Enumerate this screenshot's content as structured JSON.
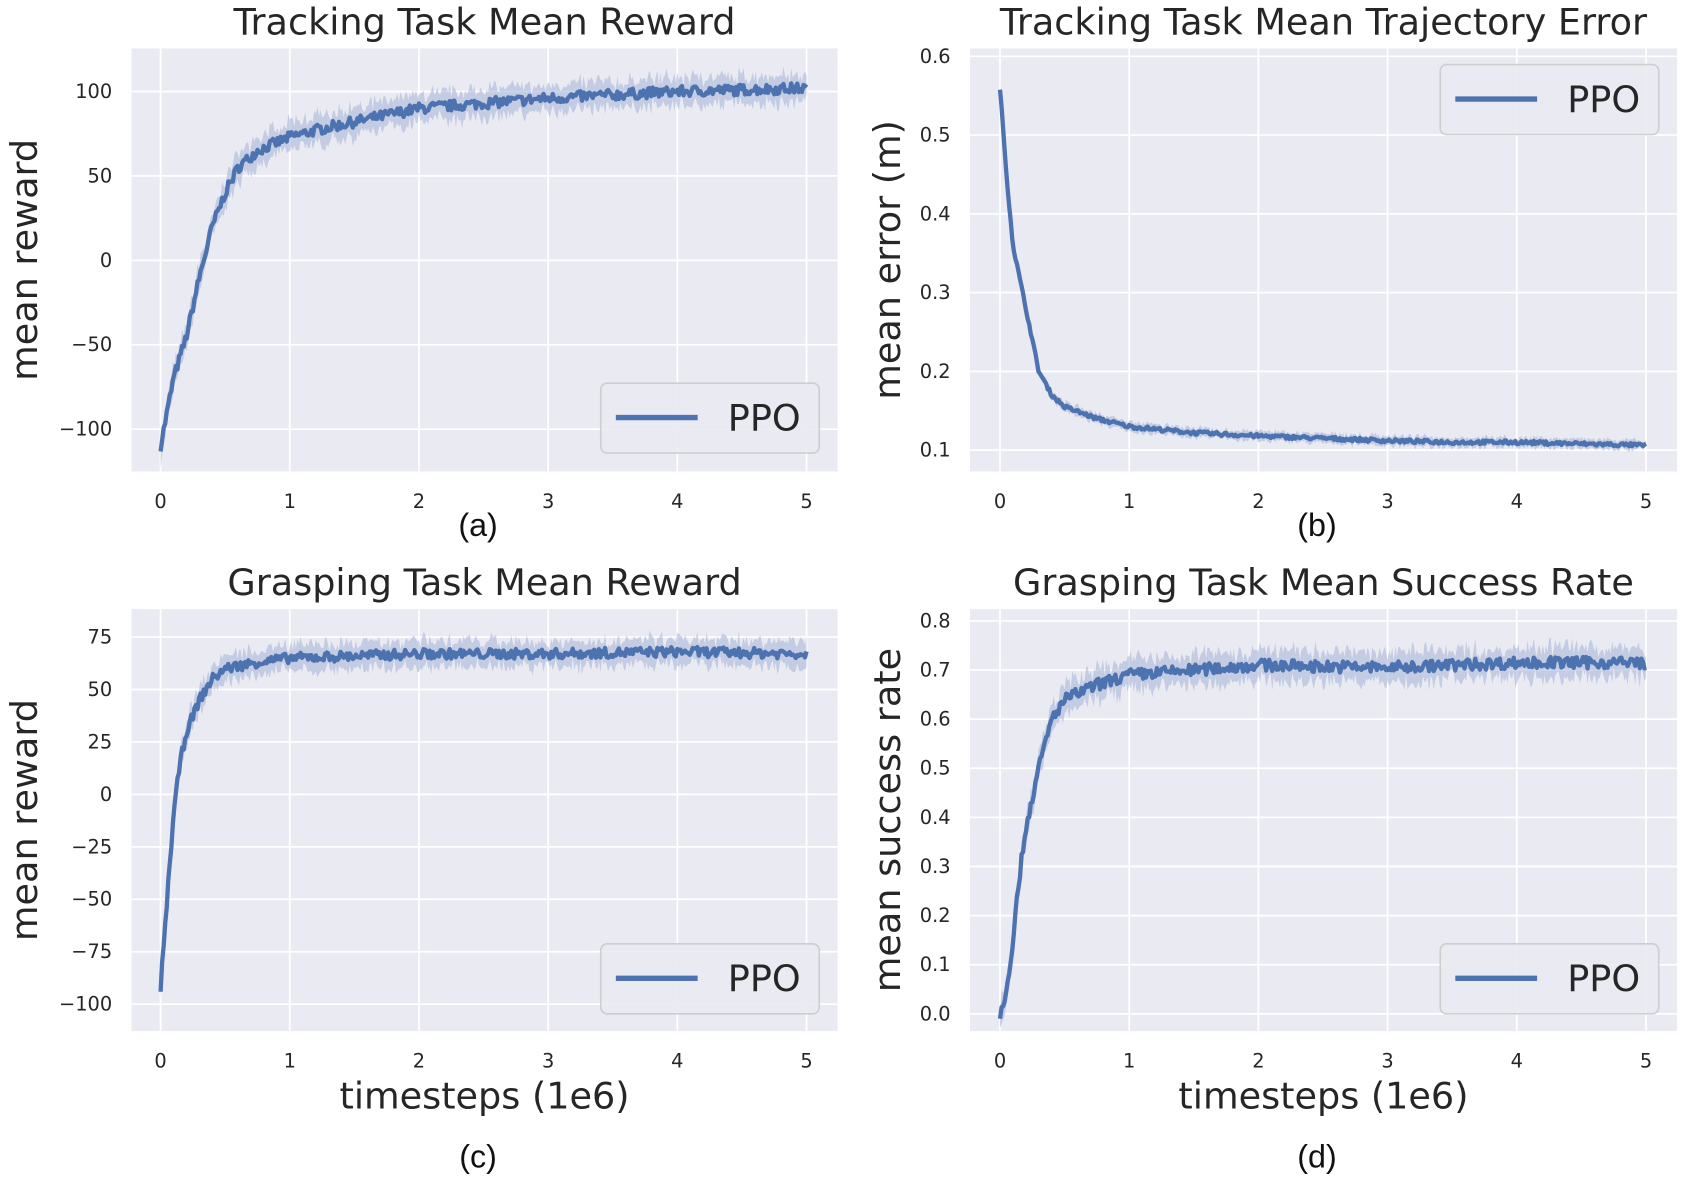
{
  "colors": {
    "line": "#4c72b0",
    "band": "#a9b8d8",
    "axes_bg": "#eaeaf2",
    "grid": "#ffffff"
  },
  "chart_data": [
    {
      "type": "line",
      "panel_label": "(a)",
      "title": "Tracking Task Mean Reward",
      "xlabel": "",
      "ylabel": "mean reward",
      "xlim": [
        -0.225,
        5.24
      ],
      "ylim": [
        -125,
        125.5
      ],
      "xticks": [
        0,
        1,
        2,
        3,
        4,
        5
      ],
      "yticks": [
        -100,
        -50,
        0,
        50,
        100
      ],
      "ytick_labels": [
        "−100",
        "−50",
        "0",
        "50",
        "100"
      ],
      "legend": {
        "entries": [
          "PPO"
        ],
        "placement": "bottom-right"
      },
      "grid": true,
      "series": [
        {
          "name": "PPO",
          "x": [
            0,
            0.1,
            0.2,
            0.3,
            0.4,
            0.5,
            0.6,
            0.75,
            1,
            1.25,
            1.5,
            1.75,
            2,
            2.5,
            3,
            3.5,
            4,
            4.5,
            5
          ],
          "y": [
            -110,
            -70,
            -45,
            -10,
            20,
            40,
            55,
            65,
            73,
            78,
            82,
            86,
            90,
            93,
            96,
            98,
            100,
            101,
            102
          ],
          "band": 8
        }
      ]
    },
    {
      "type": "line",
      "panel_label": "(b)",
      "title": "Tracking Task Mean Trajectory Error",
      "xlabel": "",
      "ylabel": "mean error (m)",
      "xlim": [
        -0.233,
        5.24
      ],
      "ylim": [
        0.073,
        0.61
      ],
      "xticks": [
        0,
        1,
        2,
        3,
        4,
        5
      ],
      "yticks": [
        0.1,
        0.2,
        0.3,
        0.4,
        0.5,
        0.6
      ],
      "ytick_labels": [
        "0.1",
        "0.2",
        "0.3",
        "0.4",
        "0.5",
        "0.6"
      ],
      "legend": {
        "entries": [
          "PPO"
        ],
        "placement": "top-right"
      },
      "grid": true,
      "series": [
        {
          "name": "PPO",
          "x": [
            0,
            0.05,
            0.1,
            0.2,
            0.3,
            0.4,
            0.5,
            0.75,
            1,
            1.5,
            2,
            2.5,
            3,
            3.5,
            4,
            4.5,
            5
          ],
          "y": [
            0.56,
            0.45,
            0.36,
            0.28,
            0.2,
            0.17,
            0.155,
            0.14,
            0.13,
            0.122,
            0.118,
            0.115,
            0.112,
            0.11,
            0.11,
            0.108,
            0.106
          ],
          "band": 0.006
        }
      ]
    },
    {
      "type": "line",
      "panel_label": "(c)",
      "title": "Grasping Task Mean Reward",
      "xlabel": "timesteps (1e6)",
      "ylabel": "mean reward",
      "xlim": [
        -0.225,
        5.24
      ],
      "ylim": [
        -112.8,
        88.3
      ],
      "xticks": [
        0,
        1,
        2,
        3,
        4,
        5
      ],
      "yticks": [
        -100,
        -75,
        -50,
        -25,
        0,
        25,
        50,
        75
      ],
      "ytick_labels": [
        "−100",
        "−75",
        "−50",
        "−25",
        "0",
        "25",
        "50",
        "75"
      ],
      "legend": {
        "entries": [
          "PPO"
        ],
        "placement": "bottom-right"
      },
      "grid": true,
      "series": [
        {
          "name": "PPO",
          "x": [
            0,
            0.05,
            0.1,
            0.15,
            0.2,
            0.3,
            0.4,
            0.5,
            0.75,
            1,
            1.5,
            2,
            3,
            4,
            5
          ],
          "y": [
            -92,
            -50,
            -10,
            15,
            30,
            45,
            55,
            60,
            63,
            65,
            66,
            67,
            67,
            68,
            67
          ],
          "band": 6
        }
      ]
    },
    {
      "type": "line",
      "panel_label": "(d)",
      "title": "Grasping Task Mean Success Rate",
      "xlabel": "timesteps (1e6)",
      "ylabel": "mean success rate",
      "xlim": [
        -0.233,
        5.24
      ],
      "ylim": [
        -0.035,
        0.824
      ],
      "xticks": [
        0,
        1,
        2,
        3,
        4,
        5
      ],
      "yticks": [
        0,
        0.1,
        0.2,
        0.3,
        0.4,
        0.5,
        0.6,
        0.7,
        0.8
      ],
      "ytick_labels": [
        "0.0",
        "0.1",
        "0.2",
        "0.3",
        "0.4",
        "0.5",
        "0.6",
        "0.7",
        "0.8"
      ],
      "legend": {
        "entries": [
          "PPO"
        ],
        "placement": "bottom-right"
      },
      "grid": true,
      "series": [
        {
          "name": "PPO",
          "x": [
            0,
            0.05,
            0.1,
            0.15,
            0.2,
            0.3,
            0.4,
            0.5,
            0.75,
            1,
            1.5,
            2,
            3,
            4,
            5
          ],
          "y": [
            0,
            0.05,
            0.15,
            0.28,
            0.38,
            0.5,
            0.6,
            0.64,
            0.67,
            0.69,
            0.7,
            0.71,
            0.705,
            0.715,
            0.715
          ],
          "band": 0.03
        }
      ]
    }
  ]
}
